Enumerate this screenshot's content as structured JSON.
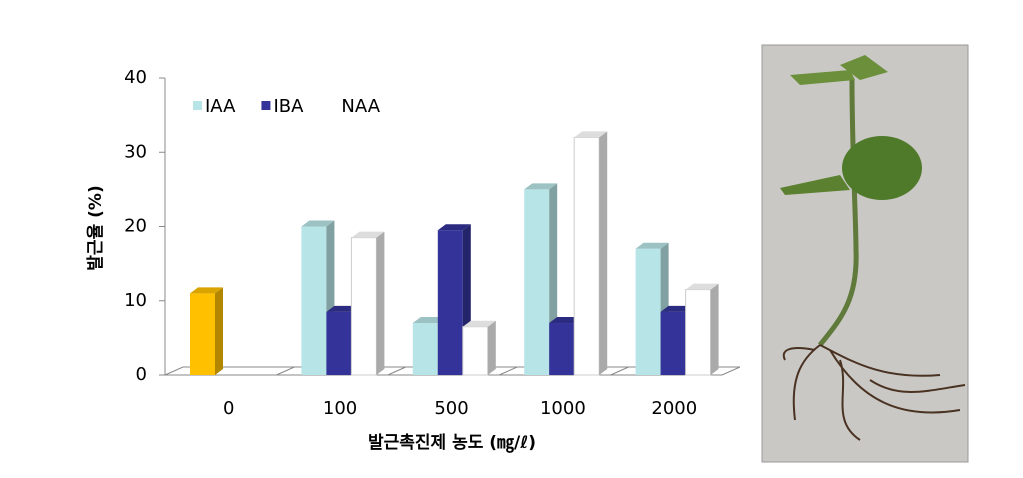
{
  "chart_data": {
    "type": "bar3d",
    "y_label": "발근율 (%)",
    "x_label": "발근촉진제 농도 (㎎/ℓ)",
    "categories": [
      "0",
      "100",
      "500",
      "1000",
      "2000"
    ],
    "control_value": 11,
    "control_color": "#ffc000",
    "series": [
      {
        "name": "IAA",
        "color": "#b7e4e6",
        "values": [
          null,
          20,
          7,
          25,
          17
        ]
      },
      {
        "name": "IBA",
        "color": "#333399",
        "values": [
          null,
          8.5,
          19.5,
          7,
          8.5
        ]
      },
      {
        "name": "NAA",
        "color": "#ffffff",
        "values": [
          null,
          18.5,
          6.5,
          32,
          11.5
        ]
      }
    ],
    "ylim": [
      0,
      40
    ],
    "yticks": [
      0,
      10,
      20,
      30,
      40
    ],
    "legend": "top-left"
  }
}
